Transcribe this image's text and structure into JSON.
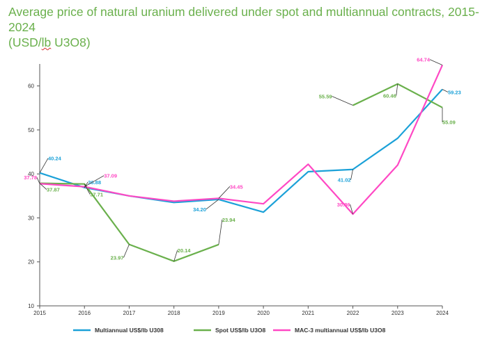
{
  "title_line1": "Average price of natural uranium delivered under spot and multiannual contracts, 2015-2024",
  "title_line2_pre": "(USD/",
  "title_line2_flag": "lb",
  "title_line2_post": " U3O8)",
  "chart_data": {
    "type": "line",
    "title": "Average price of natural uranium delivered under spot and multiannual contracts, 2015-2024 (USD/lb U3O8)",
    "x": [
      "2015",
      "2016",
      "2017",
      "2018",
      "2019",
      "2020",
      "2021",
      "2022",
      "2023",
      "2024"
    ],
    "ylim": [
      10,
      65
    ],
    "yticks": [
      10,
      20,
      30,
      40,
      50,
      60
    ],
    "grid": false,
    "legend_position": "bottom",
    "series": [
      {
        "name": "Multiannual US$/lb U308",
        "color": "#1ba1d8",
        "values": [
          40.24,
          36.9,
          35.0,
          33.5,
          34.2,
          31.3,
          40.5,
          41.02,
          48.1,
          59.23
        ]
      },
      {
        "name": "Spot US$/lb U3O8",
        "color": "#6ab04c",
        "values": [
          37.87,
          37.71,
          23.97,
          20.14,
          23.94,
          null,
          null,
          55.59,
          60.46,
          55.09
        ]
      },
      {
        "name": "MAC-3 multiannual US$/lb U3O8",
        "color": "#ff48c4",
        "values": [
          37.78,
          37.09,
          35.0,
          33.8,
          34.45,
          33.2,
          42.2,
          30.86,
          42.0,
          64.74
        ]
      }
    ],
    "data_labels": [
      {
        "series": 0,
        "index": 0,
        "text": "40.24"
      },
      {
        "series": 0,
        "index": 1,
        "text": "36.88"
      },
      {
        "series": 0,
        "index": 4,
        "text": "34.20"
      },
      {
        "series": 0,
        "index": 7,
        "text": "41.02"
      },
      {
        "series": 0,
        "index": 9,
        "text": "59.23"
      },
      {
        "series": 1,
        "index": 0,
        "text": "37.87"
      },
      {
        "series": 1,
        "index": 1,
        "text": "37.71"
      },
      {
        "series": 1,
        "index": 2,
        "text": "23.97"
      },
      {
        "series": 1,
        "index": 3,
        "text": "20.14"
      },
      {
        "series": 1,
        "index": 4,
        "text": "23.94"
      },
      {
        "series": 1,
        "index": 7,
        "text": "55.59"
      },
      {
        "series": 1,
        "index": 8,
        "text": "60.46"
      },
      {
        "series": 1,
        "index": 9,
        "text": "55.09"
      },
      {
        "series": 2,
        "index": 0,
        "text": "37.78"
      },
      {
        "series": 2,
        "index": 1,
        "text": "37.09"
      },
      {
        "series": 2,
        "index": 4,
        "text": "34.45"
      },
      {
        "series": 2,
        "index": 7,
        "text": "30.86"
      },
      {
        "series": 2,
        "index": 9,
        "text": "64.74"
      }
    ]
  }
}
